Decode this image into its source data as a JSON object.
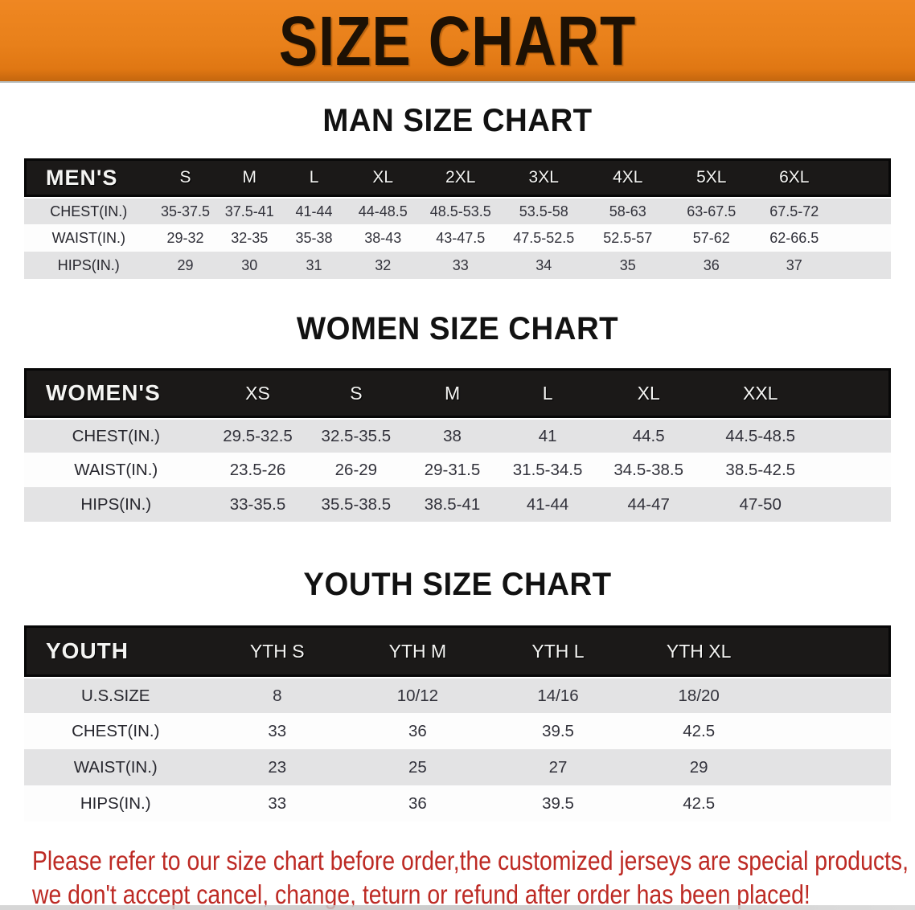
{
  "banner": {
    "title": "SIZE CHART",
    "bg_color": "#e8801a",
    "text_color": "#1d1104"
  },
  "sections": [
    {
      "id": "mens",
      "heading": "MAN SIZE CHART",
      "table": {
        "corner_label": "MEN'S",
        "columns": [
          "S",
          "M",
          "L",
          "XL",
          "2XL",
          "3XL",
          "4XL",
          "5XL",
          "6XL"
        ],
        "rows": [
          {
            "label": "CHEST(IN.)",
            "values": [
              "35-37.5",
              "37.5-41",
              "41-44",
              "44-48.5",
              "48.5-53.5",
              "53.5-58",
              "58-63",
              "63-67.5",
              "67.5-72"
            ]
          },
          {
            "label": "WAIST(IN.)",
            "values": [
              "29-32",
              "32-35",
              "35-38",
              "38-43",
              "43-47.5",
              "47.5-52.5",
              "52.5-57",
              "57-62",
              "62-66.5"
            ]
          },
          {
            "label": "HIPS(IN.)",
            "values": [
              "29",
              "30",
              "31",
              "32",
              "33",
              "34",
              "35",
              "36",
              "37"
            ]
          }
        ]
      }
    },
    {
      "id": "womens",
      "heading": "WOMEN SIZE CHART",
      "table": {
        "corner_label": "WOMEN'S",
        "columns": [
          "XS",
          "S",
          "M",
          "L",
          "XL",
          "XXL"
        ],
        "rows": [
          {
            "label": "CHEST(IN.)",
            "values": [
              "29.5-32.5",
              "32.5-35.5",
              "38",
              "41",
              "44.5",
              "44.5-48.5"
            ]
          },
          {
            "label": "WAIST(IN.)",
            "values": [
              "23.5-26",
              "26-29",
              "29-31.5",
              "31.5-34.5",
              "34.5-38.5",
              "38.5-42.5"
            ]
          },
          {
            "label": "HIPS(IN.)",
            "values": [
              "33-35.5",
              "35.5-38.5",
              "38.5-41",
              "41-44",
              "44-47",
              "47-50"
            ]
          }
        ]
      }
    },
    {
      "id": "youth",
      "heading": "YOUTH SIZE CHART",
      "table": {
        "corner_label": "YOUTH",
        "columns": [
          "YTH S",
          "YTH M",
          "YTH L",
          "YTH XL"
        ],
        "rows": [
          {
            "label": "U.S.SIZE",
            "values": [
              "8",
              "10/12",
              "14/16",
              "18/20"
            ]
          },
          {
            "label": "CHEST(IN.)",
            "values": [
              "33",
              "36",
              "39.5",
              "42.5"
            ]
          },
          {
            "label": "WAIST(IN.)",
            "values": [
              "23",
              "25",
              "27",
              "29"
            ]
          },
          {
            "label": "HIPS(IN.)",
            "values": [
              "33",
              "36",
              "39.5",
              "42.5"
            ]
          }
        ]
      }
    }
  ],
  "disclaimer": {
    "line1": "Please refer to our size chart before order,the customized jerseys are special products,",
    "line2": "we don't accept cancel, change, teturn or refund after order has been placed!",
    "color": "#bd2a24"
  },
  "table_style_colors": {
    "header_band": "#1b1918",
    "header_text": "#f4f4f2",
    "row_gray": "#e3e3e4",
    "row_white": "#fdfdfd",
    "body_text": "#32323b"
  }
}
